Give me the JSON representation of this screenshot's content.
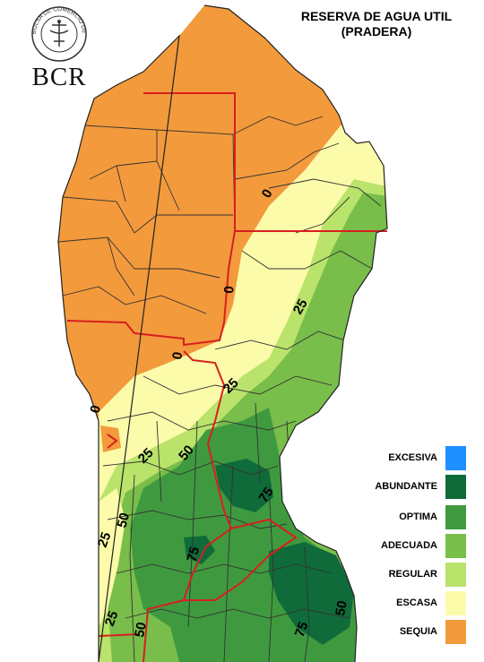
{
  "title": {
    "line1": "RESERVA DE AGUA UTIL",
    "line2": "(PRADERA)"
  },
  "logo": {
    "text": "BCR",
    "seal_text": "BOLSA DE COMERCIO DE ROSARIO"
  },
  "legend": [
    {
      "label": "EXCESIVA",
      "color": "#1e90ff"
    },
    {
      "label": "ABUNDANTE",
      "color": "#0f6b3a"
    },
    {
      "label": "OPTIMA",
      "color": "#3f9a3f"
    },
    {
      "label": "ADECUADA",
      "color": "#79bd4a"
    },
    {
      "label": "REGULAR",
      "color": "#b9e36a"
    },
    {
      "label": "ESCASA",
      "color": "#fbfbaa"
    },
    {
      "label": "SEQUIA",
      "color": "#f39a3c"
    }
  ],
  "isolines": [
    "0",
    "0",
    "0",
    "0",
    "25",
    "25",
    "25",
    "25",
    "25",
    "50",
    "50",
    "50",
    "75",
    "75",
    "75",
    "50"
  ]
}
